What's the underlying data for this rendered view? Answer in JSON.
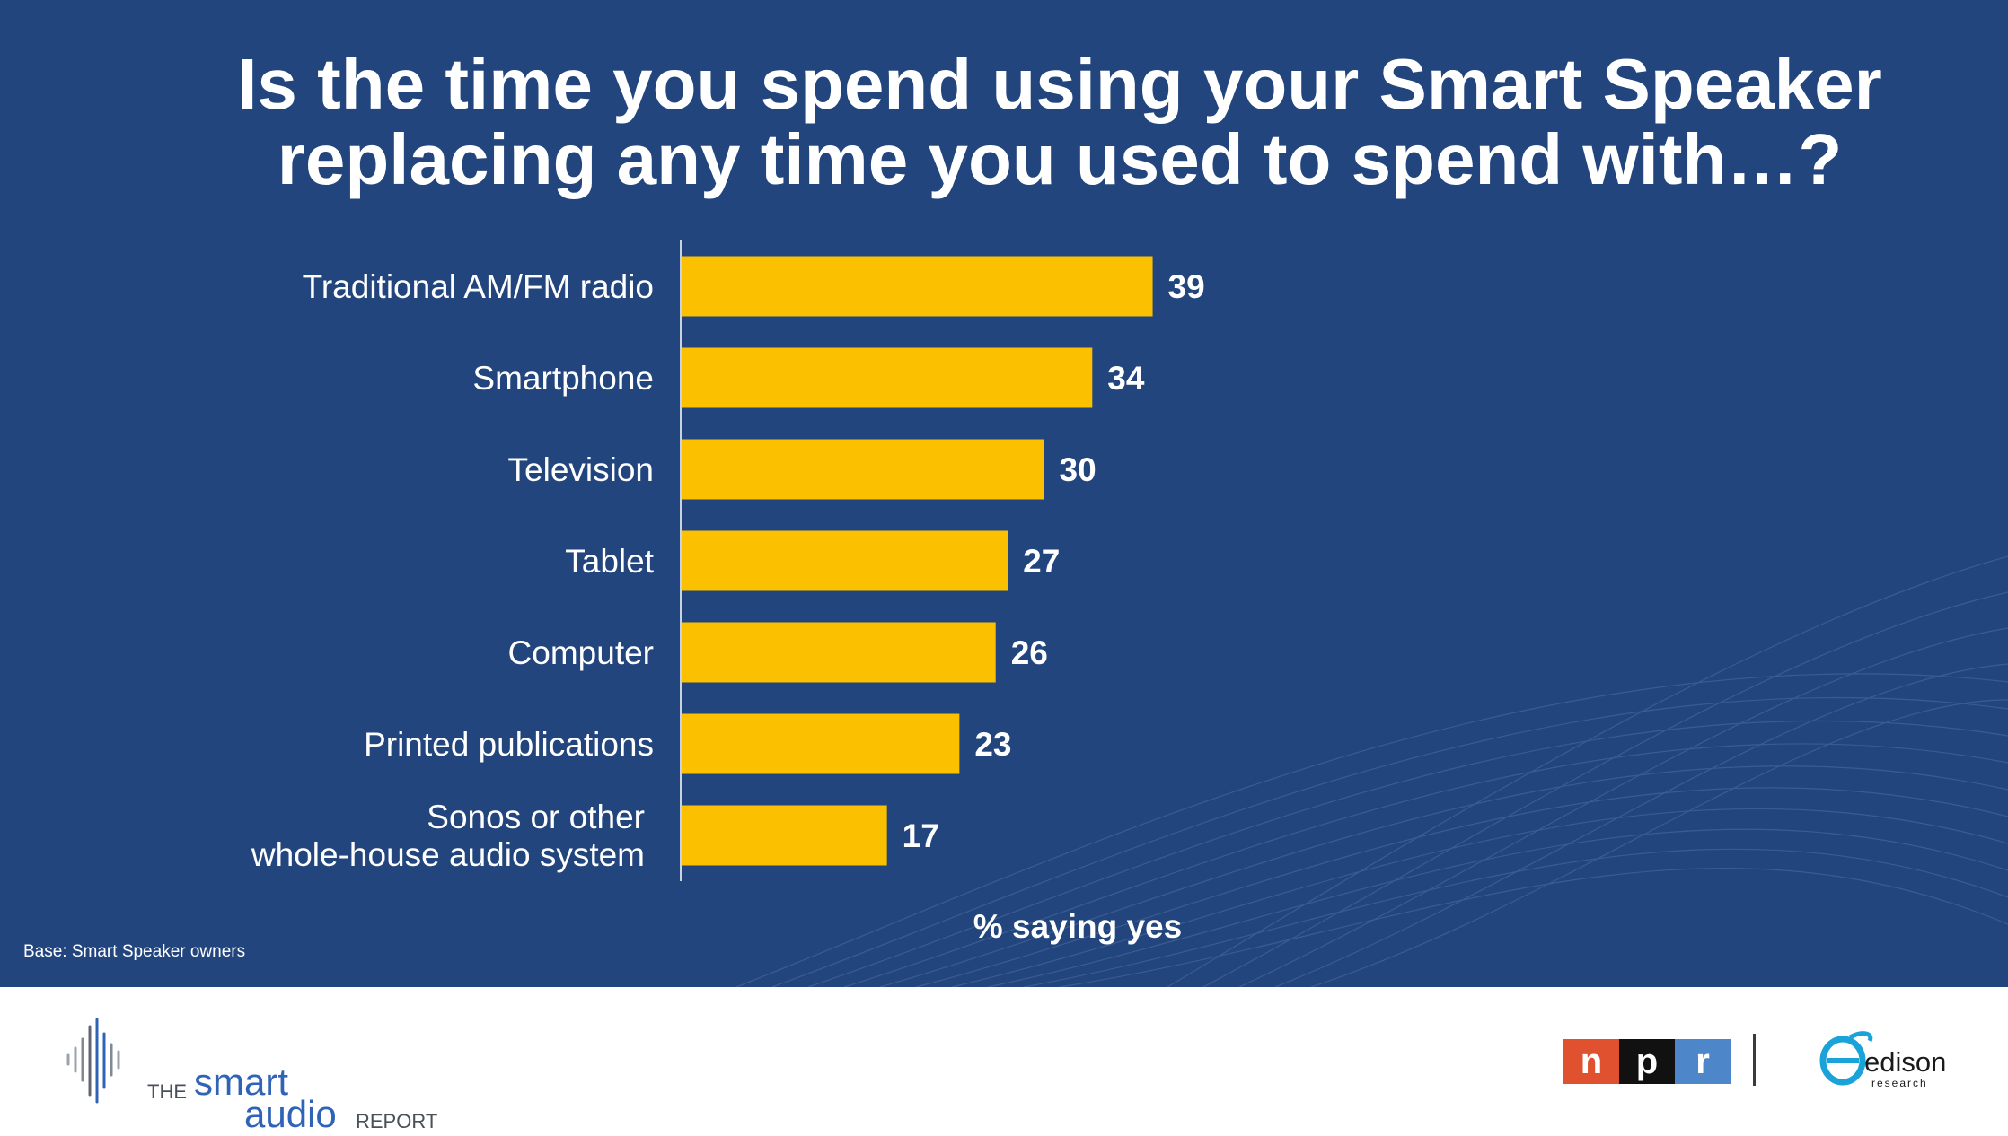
{
  "colors": {
    "background": "#22457d",
    "bar": "#fbc100",
    "text": "#ffffff",
    "npr_red": "#e0512f",
    "npr_black": "#111111",
    "npr_blue": "#4d87c9",
    "logo_blue": "#2f63b6",
    "edison_cyan": "#1aa3d9"
  },
  "title": {
    "line1": "Is the time you spend using your Smart Speaker",
    "line2": "replacing any time you used to spend with…?"
  },
  "chart_data": {
    "type": "bar",
    "orientation": "horizontal",
    "categories": [
      [
        "Traditional AM/FM radio"
      ],
      [
        "Smartphone"
      ],
      [
        "Television"
      ],
      [
        "Tablet"
      ],
      [
        "Computer"
      ],
      [
        "Printed publications"
      ],
      [
        "Sonos or other",
        "whole-house audio system"
      ]
    ],
    "values": [
      39,
      34,
      30,
      27,
      26,
      23,
      17
    ],
    "xlabel": "% saying yes",
    "xlim": [
      0,
      100
    ],
    "grid": false,
    "data_labels": true
  },
  "notes": {
    "base": "Base: Smart Speaker owners"
  },
  "footer": {
    "smart_audio": {
      "the": "THE",
      "smart": "smart",
      "audio": "audio",
      "report": "REPORT"
    },
    "npr": {
      "letters": [
        "n",
        "p",
        "r"
      ]
    },
    "edison": {
      "name": "edison",
      "sub": "research"
    }
  }
}
